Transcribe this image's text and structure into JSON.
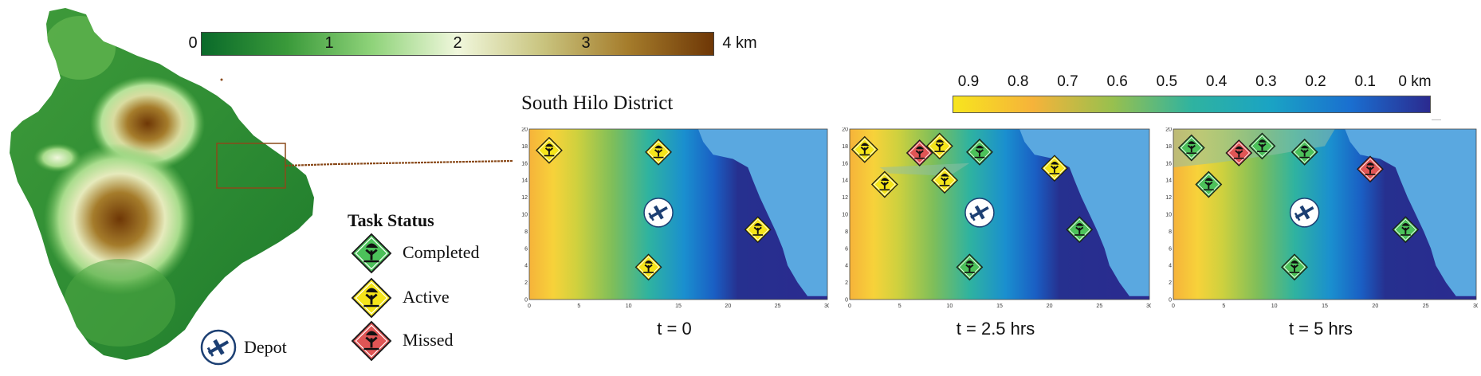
{
  "elevation_scale": {
    "ticks": [
      {
        "value": 0,
        "label": "0"
      },
      {
        "value": 1,
        "label": "1"
      },
      {
        "value": 2,
        "label": "2"
      },
      {
        "value": 3,
        "label": "3"
      },
      {
        "value": 4,
        "label": "4 km"
      }
    ],
    "colors": [
      "#0a6a2a",
      "#3a9a3a",
      "#8fd37a",
      "#f0f7dc",
      "#c9c47f",
      "#a57c2b",
      "#6e3706"
    ]
  },
  "distance_scale": {
    "ticks": [
      {
        "value": 0.9,
        "label": "0.9"
      },
      {
        "value": 0.8,
        "label": "0.8"
      },
      {
        "value": 0.7,
        "label": "0.7"
      },
      {
        "value": 0.6,
        "label": "0.6"
      },
      {
        "value": 0.5,
        "label": "0.5"
      },
      {
        "value": 0.4,
        "label": "0.4"
      },
      {
        "value": 0.3,
        "label": "0.3"
      },
      {
        "value": 0.2,
        "label": "0.2"
      },
      {
        "value": 0.1,
        "label": "0.1"
      },
      {
        "value": 0,
        "label": "0 km"
      }
    ],
    "colors": [
      "#f7e51e",
      "#f6b33a",
      "#98c04e",
      "#2fb3a0",
      "#1aa3c4",
      "#1a6fd0",
      "#2b2a8f"
    ]
  },
  "district_title": "South Hilo District",
  "legend": {
    "title": "Task Status",
    "items": [
      {
        "status": "completed",
        "label": "Completed",
        "color": "#4cc15a"
      },
      {
        "status": "active",
        "label": "Active",
        "color": "#f5e51a"
      },
      {
        "status": "missed",
        "label": "Missed",
        "color": "#e05555"
      }
    ],
    "depot_label": "Depot"
  },
  "axis": {
    "x_ticks": [
      "0",
      "5",
      "10",
      "15",
      "20",
      "25",
      "30"
    ],
    "y_ticks": [
      "0",
      "2",
      "4",
      "6",
      "8",
      "10",
      "12",
      "14",
      "16",
      "18",
      "20"
    ]
  },
  "panels": [
    {
      "time_label": "t = 0",
      "tasks": [
        {
          "x": 2,
          "y": 17.5,
          "status": "active"
        },
        {
          "x": 13,
          "y": 17.3,
          "status": "active"
        },
        {
          "x": 23,
          "y": 8.2,
          "status": "active"
        },
        {
          "x": 12,
          "y": 3.8,
          "status": "active"
        }
      ],
      "depot": {
        "x": 13,
        "y": 10.2
      }
    },
    {
      "time_label": "t = 2.5 hrs",
      "tasks": [
        {
          "x": 1.5,
          "y": 17.6,
          "status": "active"
        },
        {
          "x": 7,
          "y": 17.2,
          "status": "missed"
        },
        {
          "x": 9,
          "y": 18.0,
          "status": "active"
        },
        {
          "x": 13,
          "y": 17.3,
          "status": "completed"
        },
        {
          "x": 20.5,
          "y": 15.4,
          "status": "active"
        },
        {
          "x": 3.5,
          "y": 13.5,
          "status": "active"
        },
        {
          "x": 9.5,
          "y": 14.0,
          "status": "active"
        },
        {
          "x": 23,
          "y": 8.2,
          "status": "completed"
        },
        {
          "x": 12,
          "y": 3.8,
          "status": "completed"
        }
      ],
      "depot": {
        "x": 13,
        "y": 10.2
      }
    },
    {
      "time_label": "t = 5 hrs",
      "tasks": [
        {
          "x": 1.8,
          "y": 17.8,
          "status": "completed"
        },
        {
          "x": 6.5,
          "y": 17.2,
          "status": "missed"
        },
        {
          "x": 8.8,
          "y": 18.0,
          "status": "completed"
        },
        {
          "x": 13,
          "y": 17.3,
          "status": "completed"
        },
        {
          "x": 19.5,
          "y": 15.3,
          "status": "missed"
        },
        {
          "x": 3.5,
          "y": 13.5,
          "status": "completed"
        },
        {
          "x": 23,
          "y": 8.2,
          "status": "completed"
        },
        {
          "x": 12,
          "y": 3.8,
          "status": "completed"
        }
      ],
      "depot": {
        "x": 13,
        "y": 10.2
      }
    }
  ]
}
